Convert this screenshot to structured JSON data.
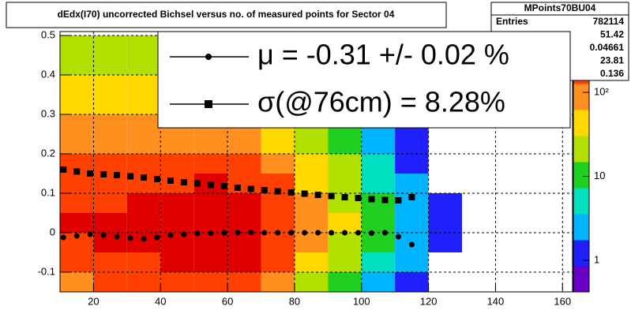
{
  "chart_data": {
    "type": "heatmap",
    "title": "dEdx(I70) uncorrected Bichsel versus no. of measured points for Sector 04",
    "xlim": [
      10,
      163
    ],
    "ylim": [
      -0.15,
      0.51
    ],
    "xticks": [
      20,
      40,
      60,
      80,
      100,
      120,
      140,
      160
    ],
    "yticks": [
      -0.1,
      0,
      0.1,
      0.2,
      0.3,
      0.4,
      0.5
    ],
    "grid": true,
    "xbins": [
      10,
      20,
      30,
      40,
      50,
      60,
      70,
      80,
      90,
      100,
      110,
      120,
      130,
      140
    ],
    "ybins": [
      -0.15,
      -0.1,
      -0.05,
      0,
      0.05,
      0.1,
      0.15,
      0.2,
      0.25,
      0.3,
      0.35,
      0.4,
      0.45,
      0.5
    ],
    "z": [
      [
        120,
        130,
        140,
        160,
        180,
        140,
        70,
        30,
        10,
        3,
        1,
        0,
        0
      ],
      [
        200,
        220,
        240,
        300,
        350,
        280,
        150,
        60,
        20,
        5,
        2,
        0,
        0
      ],
      [
        250,
        280,
        300,
        450,
        550,
        420,
        220,
        90,
        30,
        8,
        2,
        1,
        0
      ],
      [
        260,
        280,
        300,
        450,
        560,
        430,
        230,
        100,
        35,
        10,
        3,
        1,
        0
      ],
      [
        230,
        250,
        270,
        350,
        400,
        330,
        180,
        80,
        30,
        8,
        2,
        1,
        0
      ],
      [
        180,
        200,
        210,
        240,
        260,
        220,
        130,
        60,
        20,
        6,
        2,
        0,
        0
      ],
      [
        140,
        150,
        150,
        160,
        170,
        150,
        90,
        45,
        15,
        5,
        1,
        0,
        0
      ],
      [
        100,
        110,
        110,
        110,
        110,
        100,
        60,
        30,
        10,
        3,
        1,
        0,
        0
      ],
      [
        70,
        80,
        75,
        75,
        75,
        65,
        40,
        20,
        8,
        2,
        1,
        0,
        0
      ],
      [
        50,
        55,
        55,
        55,
        55,
        45,
        30,
        14,
        5,
        2,
        0,
        0,
        0
      ],
      [
        35,
        40,
        40,
        40,
        40,
        35,
        20,
        10,
        4,
        1,
        0,
        0,
        0
      ],
      [
        25,
        30,
        30,
        30,
        30,
        25,
        15,
        7,
        3,
        1,
        0,
        0,
        0
      ],
      [
        20,
        25,
        25,
        25,
        25,
        20,
        12,
        5,
        2,
        1,
        0,
        0,
        0
      ]
    ],
    "zlog": true,
    "zlim": [
      0.42,
      530
    ],
    "zticks": [
      1,
      10,
      {
        "value": 100,
        "label": "10²"
      }
    ],
    "palette": [
      "#6a00c8",
      "#2020ff",
      "#00b4ff",
      "#00e0c0",
      "#20d020",
      "#b0e000",
      "#ffd800",
      "#ff9020",
      "#ff4000",
      "#e00000"
    ],
    "x": [
      11,
      15,
      19,
      23,
      27,
      31,
      35,
      39,
      43,
      47,
      51,
      55,
      59,
      63,
      67,
      71,
      75,
      79,
      83,
      87,
      91,
      95,
      99,
      103,
      107,
      111,
      115
    ],
    "series": [
      {
        "name": "μ  = -0.31 +/-  0.02 %",
        "marker": "circle",
        "color": "#000000",
        "values": [
          -0.012,
          -0.008,
          -0.004,
          -0.006,
          -0.01,
          -0.014,
          -0.016,
          -0.012,
          -0.006,
          -0.004,
          -0.002,
          -0.001,
          0,
          0,
          0.001,
          0,
          0,
          0,
          0,
          0,
          0,
          0,
          0,
          -0.001,
          0,
          -0.01,
          -0.03
        ]
      },
      {
        "name": "σ(@76cm) =  8.28%",
        "marker": "square",
        "color": "#000000",
        "values": [
          0.16,
          0.155,
          0.15,
          0.148,
          0.146,
          0.143,
          0.14,
          0.136,
          0.132,
          0.128,
          0.125,
          0.121,
          0.118,
          0.114,
          0.111,
          0.108,
          0.105,
          0.102,
          0.099,
          0.096,
          0.093,
          0.09,
          0.088,
          0.085,
          0.083,
          0.082,
          0.09
        ]
      }
    ],
    "stats": {
      "title": "MPoints70BU04",
      "rows": [
        {
          "label": "Entries",
          "value": "782114"
        },
        {
          "value": "51.42"
        },
        {
          "value": "0.04661"
        },
        {
          "value": "23.81"
        },
        {
          "value": "0.136"
        }
      ]
    }
  }
}
